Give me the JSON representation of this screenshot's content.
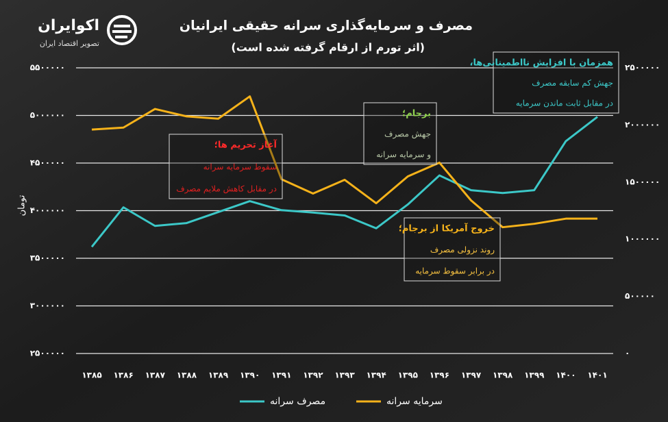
{
  "chart_data": {
    "type": "line",
    "title": "مصرف و سرمایه‌گذاری سرانه حقیقی ایرانیان",
    "subtitle": "(اثر تورم از ارقام گرفته شده است)",
    "brand": "اکوایران",
    "brand_tagline": "تصویر اقتصاد ایران",
    "y_label": "تومان",
    "categories": [
      "۱۳۸۵",
      "۱۳۸۶",
      "۱۳۸۷",
      "۱۳۸۸",
      "۱۳۸۹",
      "۱۳۹۰",
      "۱۳۹۱",
      "۱۳۹۲",
      "۱۳۹۳",
      "۱۳۹۴",
      "۱۳۹۵",
      "۱۳۹۶",
      "۱۳۹۷",
      "۱۳۹۸",
      "۱۳۹۹",
      "۱۴۰۰",
      "۱۴۰۱"
    ],
    "ylim": [
      2500000,
      5500000
    ],
    "yticks": [
      {
        "value": 2500000,
        "label": "۲۵۰۰۰۰۰"
      },
      {
        "value": 3000000,
        "label": "۳۰۰۰۰۰۰"
      },
      {
        "value": 3500000,
        "label": "۳۵۰۰۰۰۰"
      },
      {
        "value": 4000000,
        "label": "۴۰۰۰۰۰۰"
      },
      {
        "value": 4500000,
        "label": "۴۵۰۰۰۰۰"
      },
      {
        "value": 5000000,
        "label": "۵۰۰۰۰۰۰"
      },
      {
        "value": 5500000,
        "label": "۵۵۰۰۰۰۰"
      }
    ],
    "y2lim": [
      0,
      2500000
    ],
    "y2ticks": [
      {
        "value": 0,
        "label": "۰"
      },
      {
        "value": 500000,
        "label": "۵۰۰۰۰۰"
      },
      {
        "value": 1000000,
        "label": "۱۰۰۰۰۰۰"
      },
      {
        "value": 1500000,
        "label": "۱۵۰۰۰۰۰"
      },
      {
        "value": 2000000,
        "label": "۲۰۰۰۰۰۰"
      },
      {
        "value": 2500000,
        "label": "۲۵۰۰۰۰۰"
      }
    ],
    "grid": true,
    "series": [
      {
        "name": "مصرف سرانه",
        "color": "#3cc8c8",
        "axis": "y",
        "values": [
          3620000,
          4035000,
          3840000,
          3870000,
          3985000,
          4100000,
          4005000,
          3980000,
          3950000,
          3815000,
          4065000,
          4370000,
          4215000,
          4185000,
          4215000,
          4730000,
          4985000
        ]
      },
      {
        "name": "سرمایه سرانه",
        "color": "#f5b21a",
        "axis": "y2",
        "values": [
          1960000,
          1977000,
          2140000,
          2075000,
          2055000,
          2250000,
          1525000,
          1400000,
          1520000,
          1315000,
          1550000,
          1670000,
          1340000,
          1105000,
          1135000,
          1180000,
          1180000
        ]
      }
    ],
    "annotations": [
      {
        "lines": [
          "آغاز تحریم ها؛",
          "سقوط سرمایه سرانه",
          "در مقابل کاهش ملایم مصرف"
        ],
        "colors": [
          "#ff2a2a",
          "#e02020",
          "#e02020"
        ]
      },
      {
        "lines": [
          "برجام؛",
          "جهش مصرف",
          "و سرمایه سرانه"
        ],
        "colors": [
          "#8fd14f",
          "#b8c8a8",
          "#b8c8a8"
        ]
      },
      {
        "lines": [
          "خروج آمریکا از برجام؛",
          "روند نزولی مصرف",
          "در برابر سقوط سرمایه"
        ],
        "colors": [
          "#f5b21a",
          "#f5c040",
          "#f5c040"
        ]
      },
      {
        "lines": [
          "همزمان با افزایش نااطمینانی‌ها،",
          "جهش کم سابقه مصرف",
          "در مقابل ثابت ماندن سرمایه"
        ],
        "colors": [
          "#3cc8c8",
          "#3cc8c8",
          "#3cc8c8"
        ]
      }
    ]
  }
}
